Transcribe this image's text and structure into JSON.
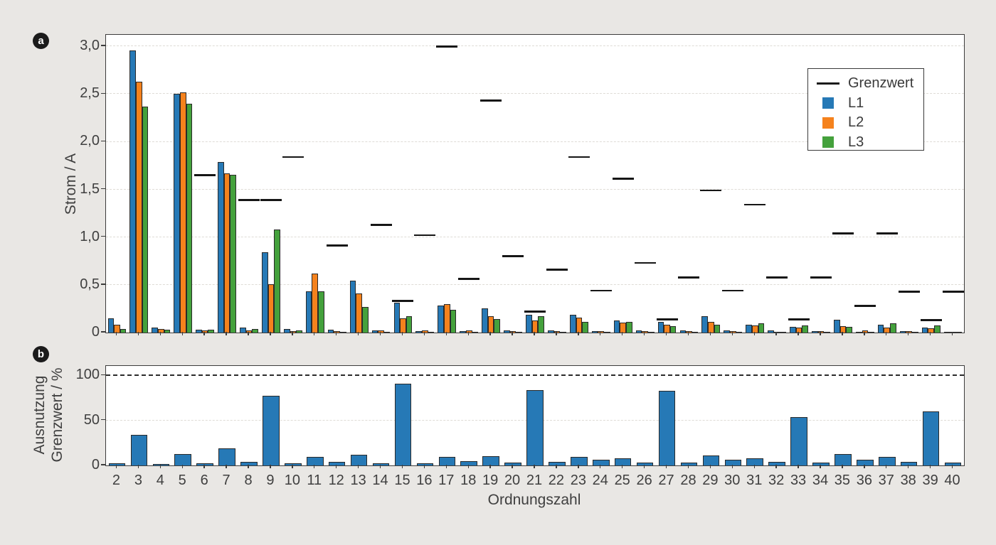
{
  "figure": {
    "background_color": "#e9e7e4",
    "panels": {
      "a": {
        "badge": "a",
        "ylabel": "Strom / A",
        "yticks": [
          {
            "value": 0,
            "label": "0"
          },
          {
            "value": 0.5,
            "label": "0,5"
          },
          {
            "value": 1.0,
            "label": "1,0"
          },
          {
            "value": 1.5,
            "label": "1,5"
          },
          {
            "value": 2.0,
            "label": "2,0"
          },
          {
            "value": 2.5,
            "label": "2,5"
          },
          {
            "value": 3.0,
            "label": "3,0"
          }
        ]
      },
      "b": {
        "badge": "b",
        "ylabel_line1": "Ausnutzung",
        "ylabel_line2": "Grenzwert / %",
        "xlabel": "Ordnungszahl",
        "yticks": [
          {
            "value": 0,
            "label": "0"
          },
          {
            "value": 50,
            "label": "50"
          },
          {
            "value": 100,
            "label": "100"
          }
        ]
      }
    }
  },
  "colors": {
    "l1": "#2679b6",
    "l2": "#f5821d",
    "l3": "#44a13c",
    "grenzwert": "#161616",
    "text": "#3f3f3f",
    "spine": "#3c3c3c",
    "background": "#e9e7e4"
  },
  "legend": {
    "items": [
      {
        "label": "Grenzwert",
        "swatch": "line",
        "color": "#1b1b1b"
      },
      {
        "label": "L1",
        "swatch": "square",
        "color": "#2679b6"
      },
      {
        "label": "L2",
        "swatch": "square",
        "color": "#f5821d"
      },
      {
        "label": "L3",
        "swatch": "square",
        "color": "#44a13c"
      }
    ]
  },
  "chart_data": [
    {
      "id": "a",
      "type": "bar",
      "title": "",
      "ylabel": "Strom / A",
      "xlabel": "",
      "ylim": [
        0,
        3.12
      ],
      "grid": true,
      "legend_position": "upper right",
      "categories": [
        2,
        3,
        4,
        5,
        6,
        7,
        8,
        9,
        10,
        11,
        12,
        13,
        14,
        15,
        16,
        17,
        18,
        19,
        20,
        21,
        22,
        23,
        24,
        25,
        26,
        27,
        28,
        29,
        30,
        31,
        32,
        33,
        34,
        35,
        36,
        37,
        38,
        39,
        40
      ],
      "series": [
        {
          "name": "L1",
          "color": "#2679b6",
          "values": [
            0.15,
            2.96,
            0.05,
            2.5,
            0.03,
            1.79,
            0.05,
            0.84,
            0.04,
            0.43,
            0.03,
            0.54,
            0.025,
            0.31,
            0.015,
            0.28,
            0.017,
            0.25,
            0.02,
            0.185,
            0.02,
            0.185,
            0.017,
            0.125,
            0.02,
            0.115,
            0.02,
            0.17,
            0.025,
            0.08,
            0.02,
            0.06,
            0.017,
            0.135,
            0.01,
            0.08,
            0.015,
            0.05,
            0.01
          ]
        },
        {
          "name": "L2",
          "color": "#f5821d",
          "values": [
            0.08,
            2.63,
            0.04,
            2.52,
            0.02,
            1.67,
            0.02,
            0.51,
            0.015,
            0.62,
            0.015,
            0.41,
            0.02,
            0.15,
            0.02,
            0.3,
            0.02,
            0.17,
            0.017,
            0.13,
            0.015,
            0.16,
            0.015,
            0.105,
            0.017,
            0.085,
            0.017,
            0.11,
            0.012,
            0.075,
            0.01,
            0.05,
            0.012,
            0.067,
            0.02,
            0.055,
            0.012,
            0.042,
            0.01
          ]
        },
        {
          "name": "L3",
          "color": "#44a13c",
          "values": [
            0.04,
            2.37,
            0.03,
            2.4,
            0.03,
            1.65,
            0.04,
            1.08,
            0.02,
            0.43,
            0.01,
            0.27,
            0.005,
            0.17,
            0.005,
            0.24,
            0.005,
            0.14,
            0.005,
            0.17,
            0.005,
            0.115,
            0.005,
            0.115,
            0.003,
            0.07,
            0.007,
            0.085,
            0.003,
            0.1,
            0.003,
            0.075,
            0.003,
            0.062,
            0.005,
            0.095,
            0.003,
            0.075,
            0.003
          ]
        }
      ],
      "limit_series": {
        "name": "Grenzwert",
        "color": "#161616",
        "values": [
          null,
          null,
          null,
          null,
          1.65,
          null,
          1.39,
          1.39,
          1.84,
          null,
          0.91,
          null,
          1.13,
          0.33,
          1.02,
          3.0,
          0.56,
          2.43,
          0.8,
          0.22,
          0.66,
          1.84,
          0.44,
          1.61,
          0.73,
          0.14,
          0.58,
          1.49,
          0.44,
          1.34,
          0.58,
          0.14,
          0.58,
          1.04,
          0.28,
          1.04,
          0.43,
          0.13,
          0.43
        ]
      }
    },
    {
      "id": "b",
      "type": "bar",
      "title": "",
      "ylabel": "Ausnutzung Grenzwert / %",
      "xlabel": "Ordnungszahl",
      "ylim": [
        0,
        110.5
      ],
      "grid": true,
      "reference_line": {
        "value": 100,
        "style": "dashed",
        "color": "#2b2b2b"
      },
      "categories": [
        2,
        3,
        4,
        5,
        6,
        7,
        8,
        9,
        10,
        11,
        12,
        13,
        14,
        15,
        16,
        17,
        18,
        19,
        20,
        21,
        22,
        23,
        24,
        25,
        26,
        27,
        28,
        29,
        30,
        31,
        32,
        33,
        34,
        35,
        36,
        37,
        38,
        39,
        40
      ],
      "series": [
        {
          "name": "Ausnutzung",
          "color": "#2679b6",
          "values": [
            2.5,
            34,
            1.5,
            12.5,
            2.6,
            19,
            4.2,
            77.5,
            2.6,
            9.5,
            4,
            12,
            2.6,
            91,
            2.4,
            9.5,
            4.5,
            10.3,
            3.4,
            84,
            4.2,
            9.2,
            6.3,
            8,
            3.4,
            82.5,
            3,
            11,
            6.3,
            8,
            3.7,
            54,
            3.4,
            12.6,
            6.6,
            9.2,
            4,
            60,
            3.4
          ]
        }
      ]
    }
  ]
}
